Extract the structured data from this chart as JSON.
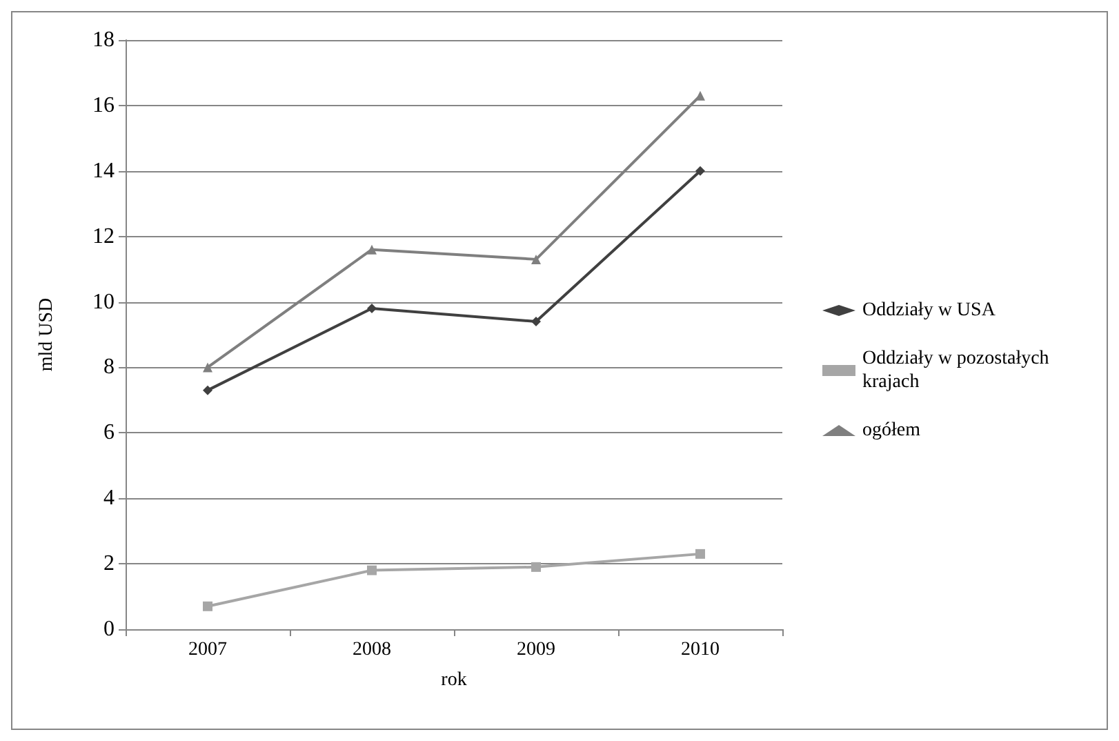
{
  "chart_data": {
    "type": "line",
    "xlabel": "rok",
    "ylabel": "mld USD",
    "categories": [
      "2007",
      "2008",
      "2009",
      "2010"
    ],
    "series": [
      {
        "name": "Oddziały w USA",
        "color": "#404040",
        "marker": "diamond",
        "values": [
          7.3,
          9.8,
          9.4,
          14.0
        ]
      },
      {
        "name": "Oddziały w pozostałych krajach",
        "color": "#a6a6a6",
        "marker": "square",
        "values": [
          0.7,
          1.8,
          1.9,
          2.3
        ]
      },
      {
        "name": "ogółem",
        "color": "#7f7f7f",
        "marker": "triangle",
        "values": [
          8.0,
          11.6,
          11.3,
          16.3
        ]
      }
    ],
    "ylim": [
      0,
      18
    ],
    "yticks": [
      0,
      2,
      4,
      6,
      8,
      10,
      12,
      14,
      16,
      18
    ],
    "grid": "y",
    "legend": "right"
  }
}
